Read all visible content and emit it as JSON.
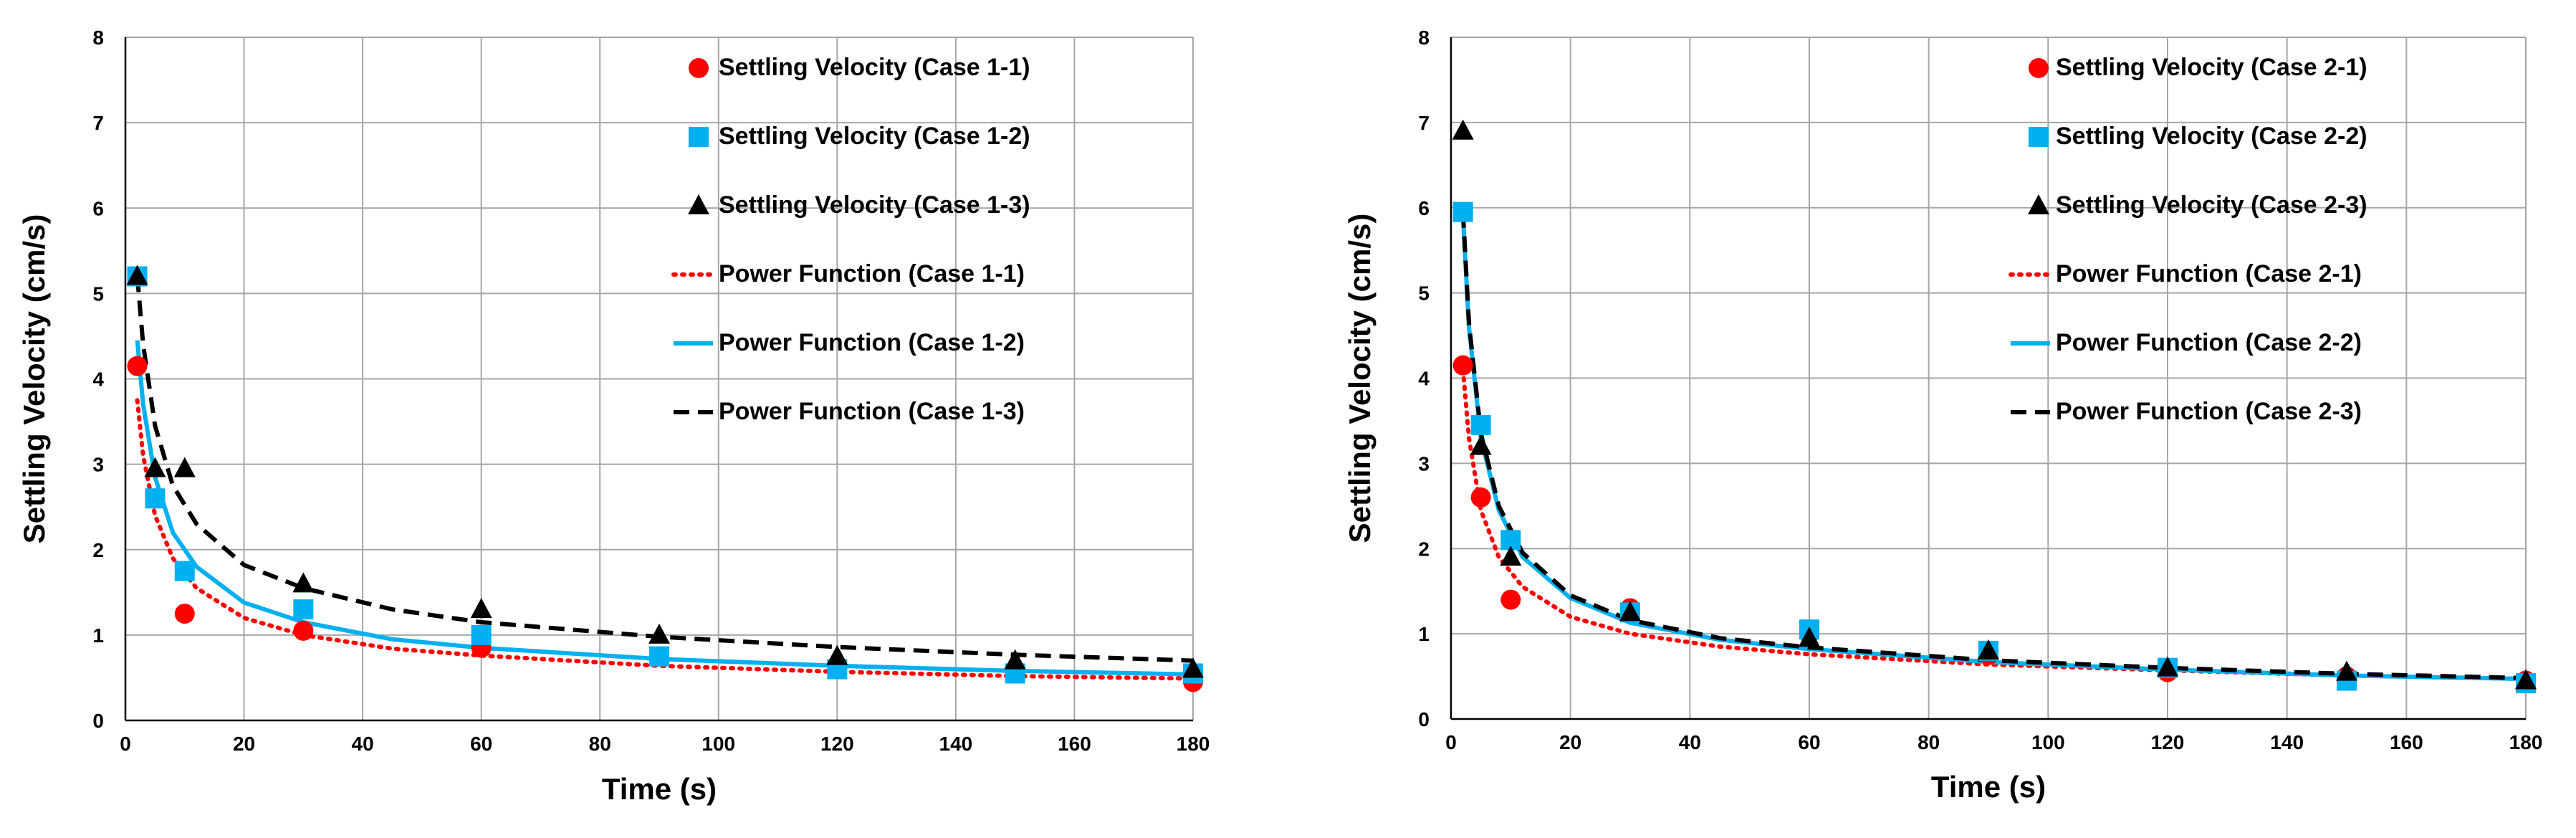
{
  "colors": {
    "case1": "#ff0000",
    "case2": "#00b0f0",
    "case3": "#000000",
    "grid": "#a6a6a6"
  },
  "chart_data": [
    {
      "type": "scatter",
      "title": "",
      "xlabel": "Time (s)",
      "ylabel": "Settling Velocity (cm/s)",
      "xlim": [
        0,
        180
      ],
      "ylim": [
        0,
        8
      ],
      "x_ticks": [
        "0",
        "20",
        "40",
        "60",
        "80",
        "100",
        "120",
        "140",
        "160",
        "180"
      ],
      "y_ticks": [
        "0",
        "1",
        "2",
        "3",
        "4",
        "5",
        "6",
        "7",
        "8"
      ],
      "grid": true,
      "legend_position": "top-right",
      "series": [
        {
          "name": "Settling Velocity (Case 1-1)",
          "kind": "points",
          "marker": "circle",
          "color": "#ff0000",
          "x": [
            2,
            5,
            10,
            30,
            60,
            90,
            120,
            150,
            180
          ],
          "y": [
            4.15,
            2.6,
            1.25,
            1.05,
            0.85,
            0.75,
            0.6,
            0.55,
            0.45
          ]
        },
        {
          "name": "Settling Velocity (Case 1-2)",
          "kind": "points",
          "marker": "square",
          "color": "#00b0f0",
          "x": [
            2,
            5,
            10,
            30,
            60,
            90,
            120,
            150,
            180
          ],
          "y": [
            5.2,
            2.6,
            1.75,
            1.3,
            1.0,
            0.75,
            0.6,
            0.55,
            0.55
          ]
        },
        {
          "name": "Settling Velocity (Case 1-3)",
          "kind": "points",
          "marker": "triangle",
          "color": "#000000",
          "x": [
            2,
            5,
            10,
            30,
            60,
            90,
            120,
            150,
            180
          ],
          "y": [
            5.2,
            2.95,
            2.95,
            1.6,
            1.3,
            1.0,
            0.75,
            0.7,
            0.6
          ]
        },
        {
          "name": "Power Function (Case 1-1)",
          "kind": "line",
          "dash": "dotted",
          "color": "#ff0000",
          "x": [
            2,
            3,
            5,
            8,
            12,
            20,
            30,
            45,
            60,
            90,
            120,
            150,
            180
          ],
          "y": [
            3.75,
            3.1,
            2.4,
            1.9,
            1.55,
            1.2,
            1.0,
            0.84,
            0.76,
            0.64,
            0.57,
            0.52,
            0.49
          ]
        },
        {
          "name": "Power Function (Case 1-2)",
          "kind": "line",
          "dash": "solid",
          "color": "#00b0f0",
          "x": [
            2,
            3,
            5,
            8,
            12,
            20,
            30,
            45,
            60,
            90,
            120,
            150,
            180
          ],
          "y": [
            4.45,
            3.7,
            2.85,
            2.2,
            1.8,
            1.38,
            1.15,
            0.95,
            0.85,
            0.72,
            0.64,
            0.58,
            0.54
          ]
        },
        {
          "name": "Power Function (Case 1-3)",
          "kind": "line",
          "dash": "dashed",
          "color": "#000000",
          "x": [
            2,
            3,
            5,
            8,
            12,
            20,
            30,
            45,
            60,
            90,
            120,
            150,
            180
          ],
          "y": [
            5.2,
            4.4,
            3.45,
            2.75,
            2.3,
            1.82,
            1.55,
            1.3,
            1.15,
            0.98,
            0.86,
            0.77,
            0.7
          ]
        }
      ]
    },
    {
      "type": "scatter",
      "title": "",
      "xlabel": "Time (s)",
      "ylabel": "Settling Velocity (cm/s)",
      "xlim": [
        0,
        180
      ],
      "ylim": [
        0,
        8
      ],
      "x_ticks": [
        "0",
        "20",
        "40",
        "60",
        "80",
        "100",
        "120",
        "140",
        "160",
        "180"
      ],
      "y_ticks": [
        "0",
        "1",
        "2",
        "3",
        "4",
        "5",
        "6",
        "7",
        "8"
      ],
      "grid": true,
      "legend_position": "top-right",
      "series": [
        {
          "name": "Settling Velocity (Case 2-1)",
          "kind": "points",
          "marker": "circle",
          "color": "#ff0000",
          "x": [
            2,
            5,
            10,
            30,
            60,
            90,
            120,
            150,
            180
          ],
          "y": [
            4.15,
            2.6,
            1.4,
            1.3,
            1.0,
            0.75,
            0.55,
            0.5,
            0.45
          ]
        },
        {
          "name": "Settling Velocity (Case 2-2)",
          "kind": "points",
          "marker": "square",
          "color": "#00b0f0",
          "x": [
            2,
            5,
            10,
            30,
            60,
            90,
            120,
            150,
            180
          ],
          "y": [
            5.95,
            3.45,
            2.1,
            1.25,
            1.05,
            0.8,
            0.6,
            0.45,
            0.42
          ]
        },
        {
          "name": "Settling Velocity (Case 2-3)",
          "kind": "points",
          "marker": "triangle",
          "color": "#000000",
          "x": [
            2,
            5,
            10,
            30,
            60,
            90,
            120,
            150,
            180
          ],
          "y": [
            6.9,
            3.2,
            1.9,
            1.25,
            0.95,
            0.8,
            0.6,
            0.55,
            0.45
          ]
        },
        {
          "name": "Power Function (Case 2-1)",
          "kind": "line",
          "dash": "dotted",
          "color": "#ff0000",
          "x": [
            2,
            3,
            5,
            8,
            12,
            20,
            30,
            45,
            60,
            90,
            120,
            150,
            180
          ],
          "y": [
            4.1,
            3.3,
            2.45,
            1.9,
            1.55,
            1.2,
            1.0,
            0.85,
            0.76,
            0.64,
            0.57,
            0.51,
            0.47
          ]
        },
        {
          "name": "Power Function (Case 2-2)",
          "kind": "line",
          "dash": "solid",
          "color": "#00b0f0",
          "x": [
            2,
            3,
            5,
            8,
            12,
            20,
            30,
            45,
            60,
            90,
            120,
            150,
            180
          ],
          "y": [
            5.9,
            4.6,
            3.3,
            2.45,
            1.9,
            1.42,
            1.13,
            0.93,
            0.82,
            0.67,
            0.58,
            0.51,
            0.47
          ]
        },
        {
          "name": "Power Function (Case 2-3)",
          "kind": "line",
          "dash": "dashed",
          "color": "#000000",
          "x": [
            2,
            3,
            5,
            8,
            12,
            20,
            30,
            45,
            60,
            90,
            120,
            150,
            180
          ],
          "y": [
            5.95,
            4.65,
            3.35,
            2.5,
            1.95,
            1.45,
            1.16,
            0.95,
            0.84,
            0.69,
            0.6,
            0.53,
            0.48
          ]
        }
      ]
    }
  ]
}
